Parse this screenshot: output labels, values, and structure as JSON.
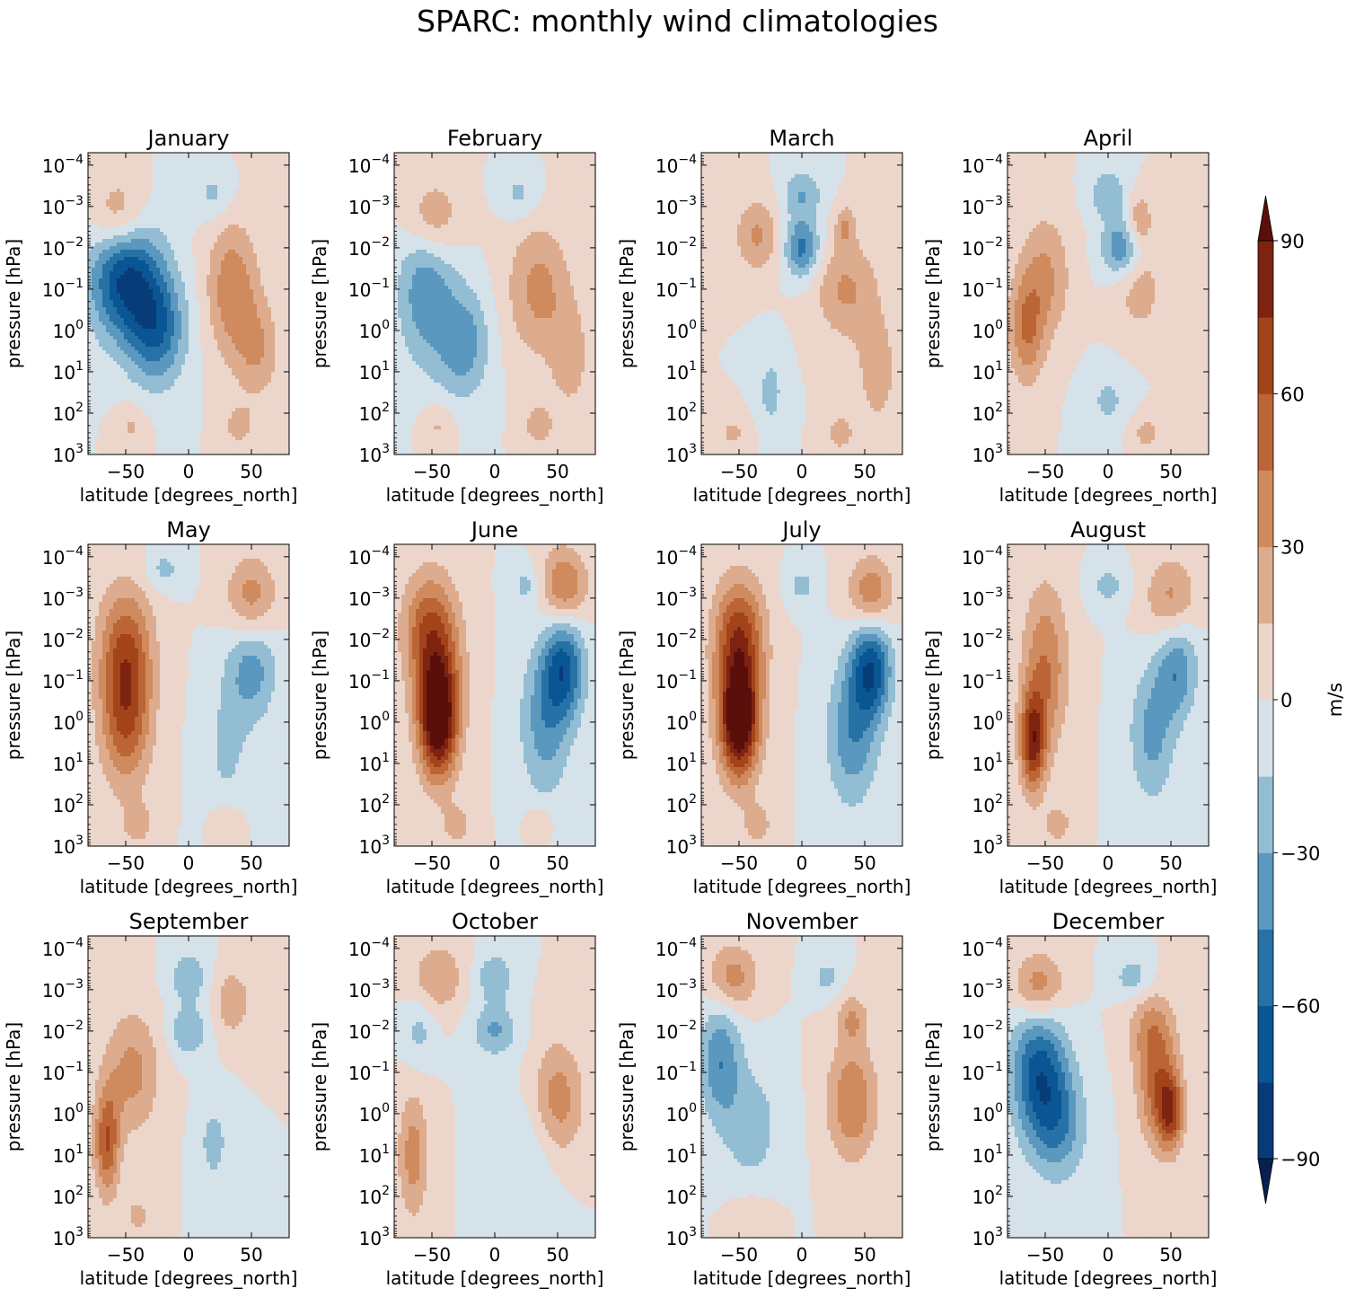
{
  "figure": {
    "title": "SPARC: monthly wind climatologies"
  },
  "chart_data": {
    "type": "contour",
    "title": "SPARC: monthly wind climatologies",
    "panel_xlabel": "latitude [degrees_north]",
    "panel_ylabel": "pressure [hPa]",
    "x_ticks": [
      -50,
      0,
      50
    ],
    "x_range": [
      -80,
      80
    ],
    "y_scale": "log",
    "y_inverted": true,
    "y_range": [
      1000,
      5e-05
    ],
    "y_ticks": [
      {
        "value": 1000,
        "base": "10",
        "exp": "3"
      },
      {
        "value": 100,
        "base": "10",
        "exp": "2"
      },
      {
        "value": 10,
        "base": "10",
        "exp": "1"
      },
      {
        "value": 1,
        "base": "10",
        "exp": "0"
      },
      {
        "value": 0.1,
        "base": "10",
        "exp": "−1"
      },
      {
        "value": 0.01,
        "base": "10",
        "exp": "−2"
      },
      {
        "value": 0.001,
        "base": "10",
        "exp": "−3"
      },
      {
        "value": 0.0001,
        "base": "10",
        "exp": "−4"
      }
    ],
    "panels": [
      {
        "title": "January",
        "features": [
          {
            "lat": -50,
            "p": 0.05,
            "v": -80,
            "wl": 28,
            "wp": 1.5
          },
          {
            "lat": -25,
            "p": 1,
            "v": -55,
            "wl": 22,
            "wp": 1.3
          },
          {
            "lat": -55,
            "p": 0.002,
            "v": 42,
            "wl": 22,
            "wp": 1.0
          },
          {
            "lat": 35,
            "p": 0.1,
            "v": 42,
            "wl": 20,
            "wp": 1.6
          },
          {
            "lat": 55,
            "p": 3,
            "v": 28,
            "wl": 18,
            "wp": 1.2
          },
          {
            "lat": 20,
            "p": 0.0005,
            "v": -20,
            "wl": 15,
            "wp": 0.6
          },
          {
            "lat": 40,
            "p": 200,
            "v": 22,
            "wl": 12,
            "wp": 0.5
          },
          {
            "lat": -45,
            "p": 200,
            "v": 18,
            "wl": 12,
            "wp": 0.5
          }
        ]
      },
      {
        "title": "February",
        "features": [
          {
            "lat": -55,
            "p": 0.1,
            "v": -42,
            "wl": 22,
            "wp": 1.8
          },
          {
            "lat": -25,
            "p": 2,
            "v": -40,
            "wl": 20,
            "wp": 1.3
          },
          {
            "lat": -50,
            "p": 0.002,
            "v": 35,
            "wl": 22,
            "wp": 1.0
          },
          {
            "lat": 35,
            "p": 0.1,
            "v": 35,
            "wl": 25,
            "wp": 1.6
          },
          {
            "lat": 20,
            "p": 0.0005,
            "v": -20,
            "wl": 15,
            "wp": 0.6
          },
          {
            "lat": 35,
            "p": 200,
            "v": 25,
            "wl": 12,
            "wp": 0.5
          },
          {
            "lat": 60,
            "p": 5,
            "v": 22,
            "wl": 16,
            "wp": 1.3
          },
          {
            "lat": -45,
            "p": 200,
            "v": 18,
            "wl": 12,
            "wp": 0.5
          }
        ]
      },
      {
        "title": "March",
        "features": [
          {
            "lat": 0,
            "p": 0.01,
            "v": -52,
            "wl": 14,
            "wp": 0.7
          },
          {
            "lat": 0,
            "p": 0.0005,
            "v": -30,
            "wl": 16,
            "wp": 0.6
          },
          {
            "lat": -35,
            "p": 0.005,
            "v": 32,
            "wl": 18,
            "wp": 0.9
          },
          {
            "lat": 35,
            "p": 0.1,
            "v": 32,
            "wl": 25,
            "wp": 1.2
          },
          {
            "lat": -25,
            "p": 30,
            "v": -20,
            "wl": 12,
            "wp": 1.0
          },
          {
            "lat": 60,
            "p": 10,
            "v": 22,
            "wl": 18,
            "wp": 1.5
          },
          {
            "lat": 35,
            "p": 0.003,
            "v": 28,
            "wl": 8,
            "wp": 0.5
          },
          {
            "lat": -55,
            "p": 300,
            "v": 18,
            "wl": 15,
            "wp": 0.5
          },
          {
            "lat": 30,
            "p": 300,
            "v": 22,
            "wl": 12,
            "wp": 0.5
          }
        ]
      },
      {
        "title": "April",
        "features": [
          {
            "lat": -65,
            "p": 1,
            "v": 42,
            "wl": 14,
            "wp": 1.3
          },
          {
            "lat": -50,
            "p": 0.05,
            "v": 32,
            "wl": 20,
            "wp": 1.5
          },
          {
            "lat": 10,
            "p": 0.01,
            "v": -45,
            "wl": 15,
            "wp": 0.7
          },
          {
            "lat": 0,
            "p": 0.0005,
            "v": -28,
            "wl": 15,
            "wp": 0.6
          },
          {
            "lat": 25,
            "p": 0.1,
            "v": 22,
            "wl": 20,
            "wp": 1.2
          },
          {
            "lat": 25,
            "p": 0.002,
            "v": 28,
            "wl": 10,
            "wp": 0.6
          },
          {
            "lat": 30,
            "p": 300,
            "v": 20,
            "wl": 14,
            "wp": 0.5
          },
          {
            "lat": 0,
            "p": 50,
            "v": -18,
            "wl": 18,
            "wp": 0.8
          }
        ]
      },
      {
        "title": "May",
        "features": [
          {
            "lat": -50,
            "p": 0.5,
            "v": 65,
            "wl": 20,
            "wp": 1.8
          },
          {
            "lat": -50,
            "p": 0.01,
            "v": 38,
            "wl": 22,
            "wp": 1.5
          },
          {
            "lat": 50,
            "p": 0.001,
            "v": 40,
            "wl": 20,
            "wp": 1.0
          },
          {
            "lat": 50,
            "p": 0.05,
            "v": -38,
            "wl": 20,
            "wp": 1.3
          },
          {
            "lat": 30,
            "p": 5,
            "v": -18,
            "wl": 18,
            "wp": 1.6
          },
          {
            "lat": -20,
            "p": 0.0002,
            "v": -20,
            "wl": 15,
            "wp": 0.5
          },
          {
            "lat": 30,
            "p": 300,
            "v": 20,
            "wl": 12,
            "wp": 0.5
          },
          {
            "lat": -40,
            "p": 300,
            "v": 22,
            "wl": 12,
            "wp": 0.5
          }
        ]
      },
      {
        "title": "June",
        "features": [
          {
            "lat": -45,
            "p": 1,
            "v": 82,
            "wl": 14,
            "wp": 1.3
          },
          {
            "lat": -45,
            "p": 0.1,
            "v": 55,
            "wl": 20,
            "wp": 2.0
          },
          {
            "lat": -55,
            "p": 0.005,
            "v": 38,
            "wl": 20,
            "wp": 1.3
          },
          {
            "lat": 55,
            "p": 0.05,
            "v": -62,
            "wl": 16,
            "wp": 1.2
          },
          {
            "lat": 40,
            "p": 1,
            "v": -38,
            "wl": 20,
            "wp": 1.8
          },
          {
            "lat": 55,
            "p": 0.0005,
            "v": 48,
            "wl": 18,
            "wp": 0.9
          },
          {
            "lat": 25,
            "p": 0.0005,
            "v": -20,
            "wl": 12,
            "wp": 0.5
          },
          {
            "lat": -30,
            "p": 300,
            "v": 22,
            "wl": 12,
            "wp": 0.5
          },
          {
            "lat": 35,
            "p": 300,
            "v": 20,
            "wl": 10,
            "wp": 0.4
          }
        ]
      },
      {
        "title": "July",
        "features": [
          {
            "lat": -50,
            "p": 1,
            "v": 85,
            "wl": 14,
            "wp": 1.3
          },
          {
            "lat": -50,
            "p": 0.1,
            "v": 55,
            "wl": 20,
            "wp": 2.0
          },
          {
            "lat": -50,
            "p": 0.005,
            "v": 35,
            "wl": 20,
            "wp": 1.2
          },
          {
            "lat": 55,
            "p": 0.05,
            "v": -70,
            "wl": 16,
            "wp": 1.2
          },
          {
            "lat": 40,
            "p": 2,
            "v": -42,
            "wl": 20,
            "wp": 1.7
          },
          {
            "lat": 55,
            "p": 0.0008,
            "v": 45,
            "wl": 18,
            "wp": 0.9
          },
          {
            "lat": 0,
            "p": 0.0005,
            "v": -20,
            "wl": 12,
            "wp": 0.5
          },
          {
            "lat": -35,
            "p": 300,
            "v": 22,
            "wl": 12,
            "wp": 0.5
          }
        ]
      },
      {
        "title": "August",
        "features": [
          {
            "lat": -60,
            "p": 3,
            "v": 75,
            "wl": 10,
            "wp": 1.2
          },
          {
            "lat": -50,
            "p": 0.05,
            "v": 45,
            "wl": 18,
            "wp": 2.0
          },
          {
            "lat": 55,
            "p": 0.05,
            "v": -42,
            "wl": 16,
            "wp": 1.2
          },
          {
            "lat": 35,
            "p": 2,
            "v": -35,
            "wl": 18,
            "wp": 1.6
          },
          {
            "lat": 50,
            "p": 0.001,
            "v": 35,
            "wl": 20,
            "wp": 1.0
          },
          {
            "lat": 0,
            "p": 0.0005,
            "v": -20,
            "wl": 15,
            "wp": 0.5
          },
          {
            "lat": -40,
            "p": 300,
            "v": 22,
            "wl": 12,
            "wp": 0.5
          }
        ]
      },
      {
        "title": "September",
        "features": [
          {
            "lat": -65,
            "p": 5,
            "v": 58,
            "wl": 10,
            "wp": 1.3
          },
          {
            "lat": -45,
            "p": 0.1,
            "v": 35,
            "wl": 22,
            "wp": 1.5
          },
          {
            "lat": 0,
            "p": 0.01,
            "v": -30,
            "wl": 15,
            "wp": 0.6
          },
          {
            "lat": 0,
            "p": 0.0005,
            "v": -28,
            "wl": 15,
            "wp": 0.6
          },
          {
            "lat": 20,
            "p": 5,
            "v": -22,
            "wl": 12,
            "wp": 1.0
          },
          {
            "lat": 35,
            "p": 0.002,
            "v": 28,
            "wl": 14,
            "wp": 0.8
          },
          {
            "lat": -40,
            "p": 300,
            "v": 20,
            "wl": 12,
            "wp": 0.5
          }
        ]
      },
      {
        "title": "October",
        "features": [
          {
            "lat": -65,
            "p": 10,
            "v": 38,
            "wl": 12,
            "wp": 1.5
          },
          {
            "lat": 0,
            "p": 0.01,
            "v": -32,
            "wl": 18,
            "wp": 0.6
          },
          {
            "lat": 0,
            "p": 0.0005,
            "v": -28,
            "wl": 15,
            "wp": 0.6
          },
          {
            "lat": 50,
            "p": 0.5,
            "v": 40,
            "wl": 20,
            "wp": 1.4
          },
          {
            "lat": -45,
            "p": 0.0005,
            "v": 30,
            "wl": 20,
            "wp": 0.8
          },
          {
            "lat": -60,
            "p": 0.01,
            "v": -20,
            "wl": 12,
            "wp": 0.8
          },
          {
            "lat": 30,
            "p": 10,
            "v": -15,
            "wl": 25,
            "wp": 1.5
          }
        ]
      },
      {
        "title": "November",
        "features": [
          {
            "lat": -65,
            "p": 0.05,
            "v": -42,
            "wl": 16,
            "wp": 1.4
          },
          {
            "lat": -40,
            "p": 2,
            "v": -22,
            "wl": 25,
            "wp": 1.6
          },
          {
            "lat": 40,
            "p": 0.5,
            "v": 45,
            "wl": 20,
            "wp": 1.4
          },
          {
            "lat": -55,
            "p": 0.0005,
            "v": 38,
            "wl": 20,
            "wp": 0.8
          },
          {
            "lat": 20,
            "p": 0.0005,
            "v": -20,
            "wl": 12,
            "wp": 0.5
          },
          {
            "lat": 40,
            "p": 0.005,
            "v": 28,
            "wl": 12,
            "wp": 0.6
          },
          {
            "lat": -40,
            "p": 300,
            "v": 18,
            "wl": 18,
            "wp": 0.5
          }
        ]
      },
      {
        "title": "December",
        "features": [
          {
            "lat": -55,
            "p": 0.1,
            "v": -65,
            "wl": 22,
            "wp": 1.5
          },
          {
            "lat": -40,
            "p": 2,
            "v": -40,
            "wl": 22,
            "wp": 1.3
          },
          {
            "lat": 40,
            "p": 0.3,
            "v": 50,
            "wl": 16,
            "wp": 1.3
          },
          {
            "lat": 50,
            "p": 1,
            "v": 55,
            "wl": 10,
            "wp": 0.9
          },
          {
            "lat": -55,
            "p": 0.0008,
            "v": 42,
            "wl": 20,
            "wp": 0.8
          },
          {
            "lat": 20,
            "p": 0.0005,
            "v": -25,
            "wl": 15,
            "wp": 0.5
          },
          {
            "lat": 35,
            "p": 0.01,
            "v": 35,
            "wl": 18,
            "wp": 1.0
          }
        ]
      }
    ],
    "colorbar": {
      "label": "m/s",
      "levels": [
        -90,
        -75,
        -60,
        -45,
        -30,
        -15,
        0,
        15,
        30,
        45,
        60,
        75,
        90
      ],
      "tick_values": [
        -90,
        -60,
        -30,
        0,
        30,
        60,
        90
      ],
      "tick_labels": [
        "−90",
        "−60",
        "−30",
        "0",
        "30",
        "60",
        "90"
      ],
      "extend": "both",
      "colors": [
        "#06214f",
        "#073c78",
        "#0a5593",
        "#2672a6",
        "#5a98bf",
        "#93bdd3",
        "#d6e2ea",
        "#ecd6cb",
        "#ddac8f",
        "#cf8a5d",
        "#bb6536",
        "#a2431a",
        "#7f2311",
        "#5a0f0a"
      ]
    }
  }
}
